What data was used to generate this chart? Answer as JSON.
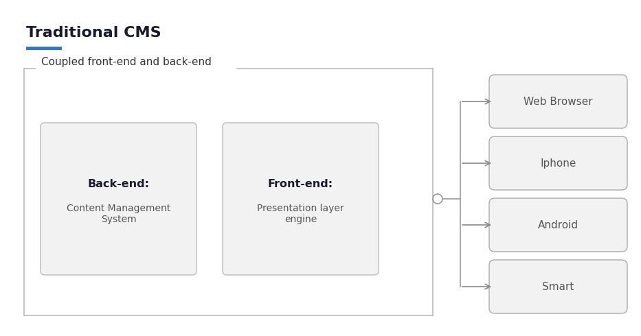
{
  "title": "Traditional CMS",
  "title_underline_color": "#2979CC",
  "bg_color": "#ffffff",
  "outer_box_label": "Coupled front-end and back-end",
  "backend_label_bold": "Back-end:",
  "backend_label_normal": "Content Management\nSystem",
  "frontend_label_bold": "Front-end:",
  "frontend_label_normal": "Presentation layer\nengine",
  "right_boxes": [
    {
      "label": "Web Browser"
    },
    {
      "label": "Iphone"
    },
    {
      "label": "Android"
    },
    {
      "label": "Smart"
    }
  ],
  "box_line_color": "#bbbbbb",
  "inner_box_face": "#f2f2f2",
  "inner_box_edge": "#bbbbbb",
  "right_box_face": "#f2f2f2",
  "right_box_edge": "#aaaaaa",
  "arrow_color": "#888888",
  "vline_color": "#999999",
  "text_dark": "#1a1a2e",
  "text_gray": "#555555",
  "outer_label_color": "#333333"
}
